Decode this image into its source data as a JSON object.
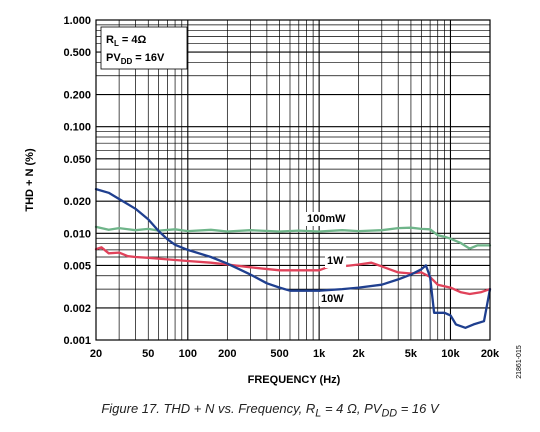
{
  "figure_id": "21861-015",
  "caption": {
    "main": "Figure 17. THD + N vs. Frequency, R",
    "s1": "L",
    "mid": " = 4 Ω, PV",
    "s2": "DD",
    "end": " = 16 V"
  },
  "conditions": {
    "line1_pre": "R",
    "line1_sub": "L",
    "line1_post": " = 4Ω",
    "line2_pre": "PV",
    "line2_sub": "DD",
    "line2_post": " = 16V"
  },
  "chart_data": {
    "type": "line",
    "xlabel": "FREQUENCY (Hz)",
    "ylabel": "THD + N (%)",
    "xscale": "log",
    "yscale": "log",
    "xlim": [
      20,
      20000
    ],
    "ylim": [
      0.001,
      1
    ],
    "grid": true,
    "x_ticks": [
      {
        "value": 20,
        "label": "20"
      },
      {
        "value": 50,
        "label": "50"
      },
      {
        "value": 100,
        "label": "100"
      },
      {
        "value": 200,
        "label": "200"
      },
      {
        "value": 500,
        "label": "500"
      },
      {
        "value": 1000,
        "label": "1k"
      },
      {
        "value": 2000,
        "label": "2k"
      },
      {
        "value": 5000,
        "label": "5k"
      },
      {
        "value": 10000,
        "label": "10k"
      },
      {
        "value": 20000,
        "label": "20k"
      }
    ],
    "y_ticks": [
      {
        "value": 1,
        "label": "1.000"
      },
      {
        "value": 0.5,
        "label": "0.500"
      },
      {
        "value": 0.2,
        "label": "0.200"
      },
      {
        "value": 0.1,
        "label": "0.100"
      },
      {
        "value": 0.05,
        "label": "0.050"
      },
      {
        "value": 0.02,
        "label": "0.020"
      },
      {
        "value": 0.01,
        "label": "0.010"
      },
      {
        "value": 0.005,
        "label": "0.005"
      },
      {
        "value": 0.002,
        "label": "0.002"
      },
      {
        "value": 0.001,
        "label": "0.001"
      }
    ],
    "series": [
      {
        "name": "100mW",
        "color": "#6fb58a",
        "points": [
          [
            20,
            0.0115
          ],
          [
            25,
            0.0108
          ],
          [
            30,
            0.0112
          ],
          [
            40,
            0.0107
          ],
          [
            50,
            0.011
          ],
          [
            60,
            0.0106
          ],
          [
            80,
            0.0109
          ],
          [
            100,
            0.0105
          ],
          [
            150,
            0.0108
          ],
          [
            200,
            0.0104
          ],
          [
            300,
            0.0107
          ],
          [
            500,
            0.0104
          ],
          [
            700,
            0.0106
          ],
          [
            1000,
            0.0104
          ],
          [
            1500,
            0.0107
          ],
          [
            2000,
            0.0105
          ],
          [
            3000,
            0.0107
          ],
          [
            4000,
            0.0112
          ],
          [
            5000,
            0.0113
          ],
          [
            6000,
            0.011
          ],
          [
            7000,
            0.0109
          ],
          [
            8000,
            0.0096
          ],
          [
            9000,
            0.0093
          ],
          [
            10000,
            0.0089
          ],
          [
            12000,
            0.0081
          ],
          [
            14000,
            0.0072
          ],
          [
            16000,
            0.0077
          ],
          [
            20000,
            0.0077
          ]
        ]
      },
      {
        "name": "1W",
        "color": "#e0425a",
        "points": [
          [
            20,
            0.0071
          ],
          [
            22,
            0.0074
          ],
          [
            25,
            0.0065
          ],
          [
            30,
            0.0066
          ],
          [
            35,
            0.0061
          ],
          [
            40,
            0.006
          ],
          [
            50,
            0.0059
          ],
          [
            70,
            0.0057
          ],
          [
            100,
            0.0055
          ],
          [
            150,
            0.0053
          ],
          [
            200,
            0.0051
          ],
          [
            300,
            0.0048
          ],
          [
            500,
            0.0045
          ],
          [
            700,
            0.0045
          ],
          [
            1000,
            0.0045
          ],
          [
            1200,
            0.0049
          ],
          [
            1500,
            0.0049
          ],
          [
            2000,
            0.0051
          ],
          [
            2500,
            0.0053
          ],
          [
            3000,
            0.0049
          ],
          [
            4000,
            0.0043
          ],
          [
            5000,
            0.0042
          ],
          [
            6000,
            0.0043
          ],
          [
            7000,
            0.0039
          ],
          [
            8000,
            0.0033
          ],
          [
            10000,
            0.0031
          ],
          [
            12000,
            0.0028
          ],
          [
            14000,
            0.0027
          ],
          [
            17000,
            0.0028
          ],
          [
            20000,
            0.003
          ]
        ]
      },
      {
        "name": "10W",
        "color": "#1f3f8f",
        "points": [
          [
            20,
            0.026
          ],
          [
            25,
            0.024
          ],
          [
            30,
            0.021
          ],
          [
            40,
            0.017
          ],
          [
            50,
            0.0135
          ],
          [
            60,
            0.0105
          ],
          [
            70,
            0.0088
          ],
          [
            80,
            0.0078
          ],
          [
            100,
            0.007
          ],
          [
            150,
            0.006
          ],
          [
            200,
            0.0052
          ],
          [
            300,
            0.0041
          ],
          [
            400,
            0.0034
          ],
          [
            500,
            0.0031
          ],
          [
            600,
            0.0029
          ],
          [
            800,
            0.0029
          ],
          [
            1000,
            0.0029
          ],
          [
            1500,
            0.003
          ],
          [
            2000,
            0.0031
          ],
          [
            3000,
            0.0033
          ],
          [
            4000,
            0.0037
          ],
          [
            5000,
            0.0041
          ],
          [
            6000,
            0.0046
          ],
          [
            6500,
            0.005
          ],
          [
            7000,
            0.0039
          ],
          [
            7500,
            0.0018
          ],
          [
            8000,
            0.0018
          ],
          [
            9000,
            0.0018
          ],
          [
            10000,
            0.0017
          ],
          [
            11000,
            0.0014
          ],
          [
            13000,
            0.0013
          ],
          [
            15000,
            0.0014
          ],
          [
            18000,
            0.0015
          ],
          [
            20000,
            0.003
          ]
        ]
      }
    ]
  }
}
